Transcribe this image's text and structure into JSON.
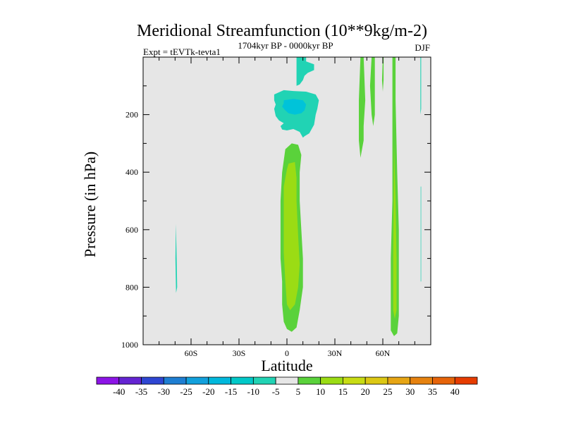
{
  "chart_data": {
    "type": "contour",
    "title": "Meridional Streamfunction (10**9kg/m-2)",
    "subtitle_left": "Expt = tEVTk-tevta1",
    "subtitle_center": "1704kyr BP - 0000kyr BP",
    "subtitle_right": "DJF",
    "xlabel": "Latitude",
    "ylabel": "Pressure (in hPa)",
    "xlim": [
      -90,
      90
    ],
    "ylim": [
      1000,
      0
    ],
    "xticks": [
      {
        "value": -60,
        "label": "60S"
      },
      {
        "value": -30,
        "label": "30S"
      },
      {
        "value": 0,
        "label": "0"
      },
      {
        "value": 30,
        "label": "30N"
      },
      {
        "value": 60,
        "label": "60N"
      }
    ],
    "yticks": [
      {
        "value": 200,
        "label": "200"
      },
      {
        "value": 400,
        "label": "400"
      },
      {
        "value": 600,
        "label": "600"
      },
      {
        "value": 800,
        "label": "800"
      },
      {
        "value": 1000,
        "label": "1000"
      }
    ],
    "background_color": "#e6e6e6",
    "regions": [
      {
        "name": "region-neg5-0-upper-cell",
        "level": "-10 to -5",
        "color": "#21d3b4",
        "points": [
          [
            6,
            0
          ],
          [
            12,
            0
          ],
          [
            12,
            15
          ],
          [
            17,
            25
          ],
          [
            17,
            45
          ],
          [
            13,
            55
          ],
          [
            11,
            65
          ],
          [
            10,
            80
          ],
          [
            8,
            95
          ],
          [
            6,
            100
          ],
          [
            6,
            20
          ]
        ]
      },
      {
        "name": "region-neg10-crossover",
        "level": "-10 to -5",
        "color": "#21d3b4",
        "points": [
          [
            -8,
            130
          ],
          [
            -2,
            115
          ],
          [
            4,
            118
          ],
          [
            12,
            120
          ],
          [
            18,
            130
          ],
          [
            20,
            150
          ],
          [
            19,
            180
          ],
          [
            18,
            200
          ],
          [
            17,
            235
          ],
          [
            14,
            265
          ],
          [
            11,
            275
          ],
          [
            10,
            280
          ],
          [
            8,
            260
          ],
          [
            4,
            250
          ],
          [
            0,
            255
          ],
          [
            -3,
            252
          ],
          [
            -4,
            240
          ],
          [
            -2,
            230
          ],
          [
            -5,
            220
          ],
          [
            -7,
            205
          ],
          [
            -8,
            180
          ],
          [
            -7,
            165
          ],
          [
            -8,
            150
          ]
        ]
      },
      {
        "name": "region-neg15-core",
        "level": "-15 to -10",
        "color": "#00c3d9",
        "points": [
          [
            -2,
            150
          ],
          [
            4,
            145
          ],
          [
            10,
            150
          ],
          [
            12,
            165
          ],
          [
            11,
            185
          ],
          [
            9,
            195
          ],
          [
            5,
            200
          ],
          [
            1,
            195
          ],
          [
            -1,
            185
          ],
          [
            -3,
            172
          ],
          [
            -2,
            160
          ]
        ]
      },
      {
        "name": "region-neg5-south-polar",
        "level": "-10 to -5",
        "color": "#21d3b4",
        "points": [
          [
            -69.5,
            580
          ],
          [
            -69,
            700
          ],
          [
            -68.7,
            800
          ],
          [
            -69.4,
            820
          ],
          [
            -69.8,
            700
          ]
        ]
      },
      {
        "name": "region-pos5-equatorial-cell",
        "level": "5 to 10",
        "color": "#5ad23b",
        "points": [
          [
            -1,
            320
          ],
          [
            3,
            300
          ],
          [
            7,
            305
          ],
          [
            9,
            340
          ],
          [
            8,
            400
          ],
          [
            8,
            500
          ],
          [
            9,
            600
          ],
          [
            10,
            700
          ],
          [
            10,
            800
          ],
          [
            8,
            880
          ],
          [
            6,
            940
          ],
          [
            3,
            955
          ],
          [
            0,
            945
          ],
          [
            -2,
            920
          ],
          [
            -3,
            860
          ],
          [
            -3,
            780
          ],
          [
            -4,
            700
          ],
          [
            -4,
            600
          ],
          [
            -4,
            500
          ],
          [
            -3,
            400
          ]
        ]
      },
      {
        "name": "region-pos10-equatorial-core",
        "level": "10 to 15",
        "color": "#9bdc14",
        "points": [
          [
            1,
            370
          ],
          [
            5,
            365
          ],
          [
            6,
            420
          ],
          [
            6,
            500
          ],
          [
            7,
            620
          ],
          [
            8,
            720
          ],
          [
            7,
            800
          ],
          [
            5,
            860
          ],
          [
            2,
            880
          ],
          [
            0,
            860
          ],
          [
            -1,
            780
          ],
          [
            -2,
            680
          ],
          [
            -2,
            560
          ],
          [
            -2,
            450
          ],
          [
            0,
            390
          ]
        ]
      },
      {
        "name": "region-pos5-nh-column-a",
        "level": "5 to 10",
        "color": "#5ad23b",
        "points": [
          [
            46,
            0
          ],
          [
            48,
            0
          ],
          [
            49,
            150
          ],
          [
            48,
            240
          ],
          [
            48,
            290
          ],
          [
            46,
            350
          ],
          [
            45,
            290
          ],
          [
            45,
            150
          ]
        ]
      },
      {
        "name": "region-pos5-nh-column-b",
        "level": "5 to 10",
        "color": "#5ad23b",
        "points": [
          [
            53,
            0
          ],
          [
            55,
            0
          ],
          [
            55,
            100
          ],
          [
            55,
            200
          ],
          [
            54,
            240
          ],
          [
            53,
            200
          ],
          [
            52,
            100
          ]
        ]
      },
      {
        "name": "region-pos5-nh-column-c",
        "level": "5 to 10",
        "color": "#5ad23b",
        "points": [
          [
            60,
            0
          ],
          [
            60.5,
            0
          ],
          [
            60.5,
            80
          ],
          [
            60,
            120
          ],
          [
            59.5,
            80
          ]
        ]
      },
      {
        "name": "region-pos5-nh-column-d",
        "level": "5 to 10",
        "color": "#5ad23b",
        "points": [
          [
            66,
            0
          ],
          [
            68,
            0
          ],
          [
            68,
            150
          ],
          [
            69,
            400
          ],
          [
            70,
            600
          ],
          [
            70,
            750
          ],
          [
            70,
            900
          ],
          [
            69,
            960
          ],
          [
            67,
            970
          ],
          [
            65,
            950
          ],
          [
            65,
            850
          ],
          [
            65,
            700
          ],
          [
            66,
            500
          ],
          [
            66,
            300
          ],
          [
            66,
            150
          ]
        ]
      },
      {
        "name": "region-pos10-nh-core",
        "level": "10 to 15",
        "color": "#9bdc14",
        "points": [
          [
            67,
            300
          ],
          [
            68,
            500
          ],
          [
            68.6,
            700
          ],
          [
            68.6,
            880
          ],
          [
            67.5,
            910
          ],
          [
            66.5,
            880
          ],
          [
            66.5,
            700
          ],
          [
            66.8,
            500
          ]
        ]
      },
      {
        "name": "region-neg5-nh-polar-upper",
        "level": "-10 to -5",
        "color": "#21d3b4",
        "points": [
          [
            83.5,
            0
          ],
          [
            84,
            0
          ],
          [
            84,
            180
          ],
          [
            83.5,
            200
          ]
        ]
      },
      {
        "name": "region-neg5-nh-polar-lower",
        "level": "-10 to -5",
        "color": "#21d3b4",
        "points": [
          [
            83.7,
            450
          ],
          [
            84,
            450
          ],
          [
            84,
            780
          ],
          [
            83.7,
            780
          ]
        ]
      }
    ],
    "colorbar": {
      "colors": [
        "#8c14e6",
        "#6424d2",
        "#2e46d2",
        "#1e7ed2",
        "#12a0dc",
        "#00b8dc",
        "#00c8c8",
        "#21d3b4",
        "#e6e6e6",
        "#5ad23b",
        "#9bdc14",
        "#c8dc14",
        "#dcc814",
        "#e6a514",
        "#e6820f",
        "#e6640a",
        "#e63c00"
      ],
      "labels": [
        "-40",
        "-35",
        "-30",
        "-25",
        "-20",
        "-15",
        "-10",
        "-5",
        "5",
        "10",
        "15",
        "20",
        "25",
        "30",
        "35",
        "40"
      ]
    }
  }
}
